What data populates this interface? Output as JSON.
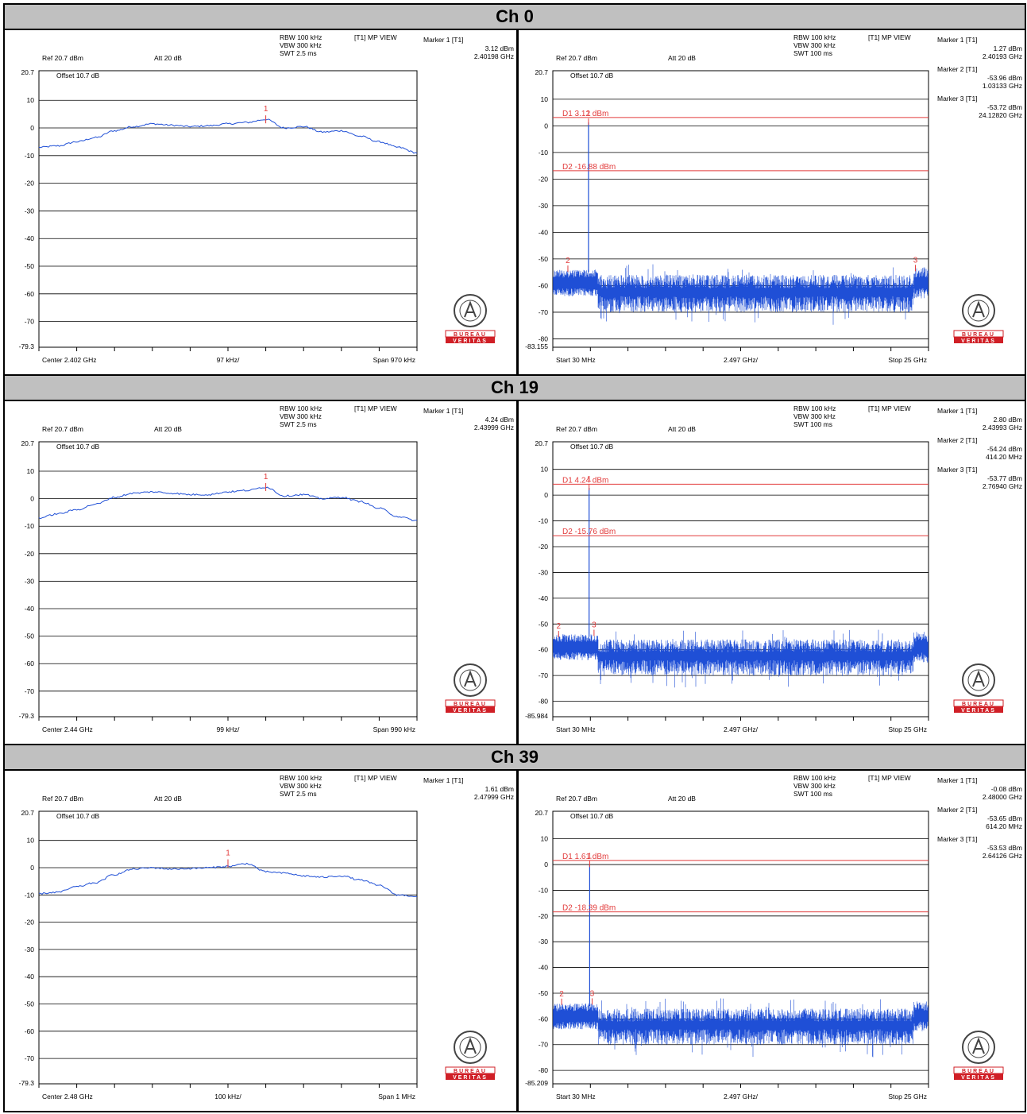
{
  "colors": {
    "trace": "#1f4fd6",
    "marker": "#e23b3b",
    "grid": "#000000",
    "header_bg": "#c0c0c0",
    "bv_red": "#d01f26"
  },
  "logo": {
    "top": "BUREAU",
    "bottom": "VERITAS"
  },
  "sections": [
    {
      "title": "Ch 0",
      "left": {
        "settings": {
          "rbw": "RBW 100 kHz",
          "vbw": "VBW 300 kHz",
          "swt": "SWT 2.5 ms",
          "mode": "[T1] MP VIEW",
          "ref": "Ref 20.7 dBm",
          "att": "Att  20 dB",
          "offset": "Offset 10.7 dB"
        },
        "markers": [
          {
            "label": "Marker 1 [T1]",
            "value": "3.12 dBm",
            "freq": "2.40198 GHz"
          }
        ],
        "y_top_label": "20.7",
        "y_bottom_label": "-79.3",
        "x_labels": {
          "left": "Center 2.402 GHz",
          "mid": "97 kHz/",
          "right": "Span 970 kHz"
        }
      },
      "right": {
        "settings": {
          "rbw": "RBW 100 kHz",
          "vbw": "VBW 300 kHz",
          "swt": "SWT 100 ms",
          "mode": "[T1] MP VIEW",
          "ref": "Ref 20.7 dBm",
          "att": "Att  20 dB",
          "offset": "Offset 10.7 dB"
        },
        "markers": [
          {
            "label": "Marker 1 [T1]",
            "value": "1.27 dBm",
            "freq": "2.40193 GHz"
          },
          {
            "label": "Marker 2 [T1]",
            "value": "-53.96 dBm",
            "freq": "1.03133 GHz"
          },
          {
            "label": "Marker 3 [T1]",
            "value": "-53.72 dBm",
            "freq": "24.12820 GHz"
          }
        ],
        "d1": "D1 3.12 dBm",
        "d2": "D2 -16.88 dBm",
        "y_top_label": "20.7",
        "y_bottom_label": "-83.155",
        "x_labels": {
          "left": "Start 30 MHz",
          "mid": "2.497 GHz/",
          "right": "Stop 25 GHz"
        }
      }
    },
    {
      "title": "Ch 19",
      "left": {
        "settings": {
          "rbw": "RBW 100 kHz",
          "vbw": "VBW 300 kHz",
          "swt": "SWT 2.5 ms",
          "mode": "[T1] MP VIEW",
          "ref": "Ref 20.7 dBm",
          "att": "Att  20 dB",
          "offset": "Offset 10.7 dB"
        },
        "markers": [
          {
            "label": "Marker 1 [T1]",
            "value": "4.24 dBm",
            "freq": "2.43999 GHz"
          }
        ],
        "y_top_label": "20.7",
        "y_bottom_label": "-79.3",
        "x_labels": {
          "left": "Center 2.44 GHz",
          "mid": "99 kHz/",
          "right": "Span 990 kHz"
        }
      },
      "right": {
        "settings": {
          "rbw": "RBW 100 kHz",
          "vbw": "VBW 300 kHz",
          "swt": "SWT 100 ms",
          "mode": "[T1] MP VIEW",
          "ref": "Ref 20.7 dBm",
          "att": "Att  20 dB",
          "offset": "Offset 10.7 dB"
        },
        "markers": [
          {
            "label": "Marker 1 [T1]",
            "value": "2.80 dBm",
            "freq": "2.43993 GHz"
          },
          {
            "label": "Marker 2 [T1]",
            "value": "-54.24 dBm",
            "freq": "414.20 MHz"
          },
          {
            "label": "Marker 3 [T1]",
            "value": "-53.77 dBm",
            "freq": "2.76940 GHz"
          }
        ],
        "d1": "D1 4.24 dBm",
        "d2": "D2 -15.76 dBm",
        "y_top_label": "20.7",
        "y_bottom_label": "-85.984",
        "x_labels": {
          "left": "Start 30 MHz",
          "mid": "2.497 GHz/",
          "right": "Stop 25 GHz"
        }
      }
    },
    {
      "title": "Ch 39",
      "left": {
        "settings": {
          "rbw": "RBW 100 kHz",
          "vbw": "VBW 300 kHz",
          "swt": "SWT 2.5 ms",
          "mode": "[T1] MP VIEW",
          "ref": "Ref 20.7 dBm",
          "att": "Att  20 dB",
          "offset": "Offset 10.7 dB"
        },
        "markers": [
          {
            "label": "Marker 1 [T1]",
            "value": "1.61 dBm",
            "freq": "2.47999 GHz"
          }
        ],
        "y_top_label": "20.7",
        "y_bottom_label": "-79.3",
        "x_labels": {
          "left": "Center 2.48 GHz",
          "mid": "100 kHz/",
          "right": "Span 1 MHz"
        }
      },
      "right": {
        "settings": {
          "rbw": "RBW 100 kHz",
          "vbw": "VBW 300 kHz",
          "swt": "SWT 100 ms",
          "mode": "[T1] MP VIEW",
          "ref": "Ref 20.7 dBm",
          "att": "Att  20 dB",
          "offset": "Offset 10.7 dB"
        },
        "markers": [
          {
            "label": "Marker 1 [T1]",
            "value": "-0.08 dBm",
            "freq": "2.48000 GHz"
          },
          {
            "label": "Marker 2 [T1]",
            "value": "-53.65 dBm",
            "freq": "614.20 MHz"
          },
          {
            "label": "Marker 3 [T1]",
            "value": "-53.53 dBm",
            "freq": "2.64126 GHz"
          }
        ],
        "d1": "D1 1.61 dBm",
        "d2": "D2 -18.39 dBm",
        "y_top_label": "20.7",
        "y_bottom_label": "-85.209",
        "x_labels": {
          "left": "Start 30 MHz",
          "mid": "2.497 GHz/",
          "right": "Stop 25 GHz"
        }
      }
    }
  ],
  "chart_data": [
    {
      "type": "line",
      "panel": "Ch 0 left",
      "ylim": [
        -79.3,
        20.7
      ],
      "yticks": [
        10,
        0,
        -10,
        -20,
        -30,
        -40,
        -50,
        -60,
        -70
      ],
      "xlim": [
        2.401515,
        2.402485
      ],
      "x_unit": "GHz",
      "shape": [
        [
          0,
          -7
        ],
        [
          0.05,
          -6.5
        ],
        [
          0.1,
          -5
        ],
        [
          0.15,
          -3.5
        ],
        [
          0.2,
          -1
        ],
        [
          0.25,
          0.5
        ],
        [
          0.3,
          1.5
        ],
        [
          0.35,
          1
        ],
        [
          0.4,
          0.5
        ],
        [
          0.45,
          0.8
        ],
        [
          0.5,
          1.5
        ],
        [
          0.55,
          2
        ],
        [
          0.6,
          3.1
        ],
        [
          0.65,
          0
        ],
        [
          0.7,
          0.5
        ],
        [
          0.75,
          -1.5
        ],
        [
          0.8,
          -1
        ],
        [
          0.85,
          -3
        ],
        [
          0.9,
          -5
        ],
        [
          0.95,
          -7
        ],
        [
          1,
          -9
        ]
      ],
      "markers": [
        {
          "n": 1,
          "x_frac": 0.6,
          "y": 3.12
        }
      ]
    },
    {
      "type": "line",
      "panel": "Ch 0 right",
      "ylim": [
        -83.155,
        20.7
      ],
      "yticks": [
        10,
        0,
        -10,
        -20,
        -30,
        -40,
        -50,
        -60,
        -70,
        -80
      ],
      "xlim": [
        0.03,
        25
      ],
      "x_unit": "GHz",
      "carrier_ghz": 2.40193,
      "carrier_dbm": 1.27,
      "noise_dbm": [
        -58,
        -67
      ],
      "lines": [
        3.12,
        -16.88
      ],
      "markers": [
        {
          "n": 1,
          "x": 2.40193,
          "y": 1.27
        },
        {
          "n": 2,
          "x": 1.03133,
          "y": -53.96
        },
        {
          "n": 3,
          "x": 24.1282,
          "y": -53.72
        }
      ]
    },
    {
      "type": "line",
      "panel": "Ch 19 left",
      "ylim": [
        -79.3,
        20.7
      ],
      "yticks": [
        10,
        0,
        -10,
        -20,
        -30,
        -40,
        -50,
        -60,
        -70
      ],
      "xlim": [
        2.439505,
        2.440495
      ],
      "x_unit": "GHz",
      "shape": [
        [
          0,
          -7
        ],
        [
          0.05,
          -5.5
        ],
        [
          0.1,
          -4
        ],
        [
          0.15,
          -2
        ],
        [
          0.2,
          0.5
        ],
        [
          0.25,
          2
        ],
        [
          0.3,
          2.5
        ],
        [
          0.35,
          2
        ],
        [
          0.4,
          1.5
        ],
        [
          0.45,
          1.5
        ],
        [
          0.5,
          2.5
        ],
        [
          0.55,
          3
        ],
        [
          0.6,
          4.2
        ],
        [
          0.65,
          1
        ],
        [
          0.7,
          1.5
        ],
        [
          0.75,
          0
        ],
        [
          0.8,
          0.5
        ],
        [
          0.85,
          -1
        ],
        [
          0.9,
          -3.5
        ],
        [
          0.95,
          -6.5
        ],
        [
          1,
          -8
        ]
      ],
      "markers": [
        {
          "n": 1,
          "x_frac": 0.6,
          "y": 4.24
        }
      ]
    },
    {
      "type": "line",
      "panel": "Ch 19 right",
      "ylim": [
        -85.984,
        20.7
      ],
      "yticks": [
        10,
        0,
        -10,
        -20,
        -30,
        -40,
        -50,
        -60,
        -70,
        -80
      ],
      "xlim": [
        0.03,
        25
      ],
      "x_unit": "GHz",
      "carrier_ghz": 2.43993,
      "carrier_dbm": 2.8,
      "noise_dbm": [
        -58,
        -67
      ],
      "lines": [
        4.24,
        -15.76
      ],
      "markers": [
        {
          "n": 1,
          "x": 2.43993,
          "y": 2.8
        },
        {
          "n": 2,
          "x": 0.4142,
          "y": -54.24
        },
        {
          "n": 3,
          "x": 2.7694,
          "y": -53.77
        }
      ]
    },
    {
      "type": "line",
      "panel": "Ch 39 left",
      "ylim": [
        -79.3,
        20.7
      ],
      "yticks": [
        10,
        0,
        -10,
        -20,
        -30,
        -40,
        -50,
        -60,
        -70
      ],
      "xlim": [
        2.4795,
        2.4805
      ],
      "x_unit": "GHz",
      "shape": [
        [
          0,
          -9.5
        ],
        [
          0.05,
          -9
        ],
        [
          0.1,
          -7
        ],
        [
          0.15,
          -5.5
        ],
        [
          0.2,
          -2.5
        ],
        [
          0.25,
          -0.5
        ],
        [
          0.3,
          0
        ],
        [
          0.35,
          -0.5
        ],
        [
          0.4,
          -0.3
        ],
        [
          0.45,
          0
        ],
        [
          0.5,
          0.5
        ],
        [
          0.55,
          1.5
        ],
        [
          0.6,
          -1.5
        ],
        [
          0.65,
          -2
        ],
        [
          0.7,
          -3
        ],
        [
          0.75,
          -3.5
        ],
        [
          0.8,
          -3
        ],
        [
          0.85,
          -4.5
        ],
        [
          0.9,
          -6.5
        ],
        [
          0.95,
          -10
        ],
        [
          1,
          -10.5
        ]
      ],
      "markers": [
        {
          "n": 1,
          "x_frac": 0.5,
          "y": 1.61
        }
      ]
    },
    {
      "type": "line",
      "panel": "Ch 39 right",
      "ylim": [
        -85.209,
        20.7
      ],
      "yticks": [
        10,
        0,
        -10,
        -20,
        -30,
        -40,
        -50,
        -60,
        -70,
        -80
      ],
      "xlim": [
        0.03,
        25
      ],
      "x_unit": "GHz",
      "carrier_ghz": 2.48,
      "carrier_dbm": -0.08,
      "noise_dbm": [
        -58,
        -67
      ],
      "lines": [
        1.61,
        -18.39
      ],
      "markers": [
        {
          "n": 1,
          "x": 2.48,
          "y": -0.08
        },
        {
          "n": 2,
          "x": 0.6142,
          "y": -53.65
        },
        {
          "n": 3,
          "x": 2.64126,
          "y": -53.53
        }
      ]
    }
  ]
}
